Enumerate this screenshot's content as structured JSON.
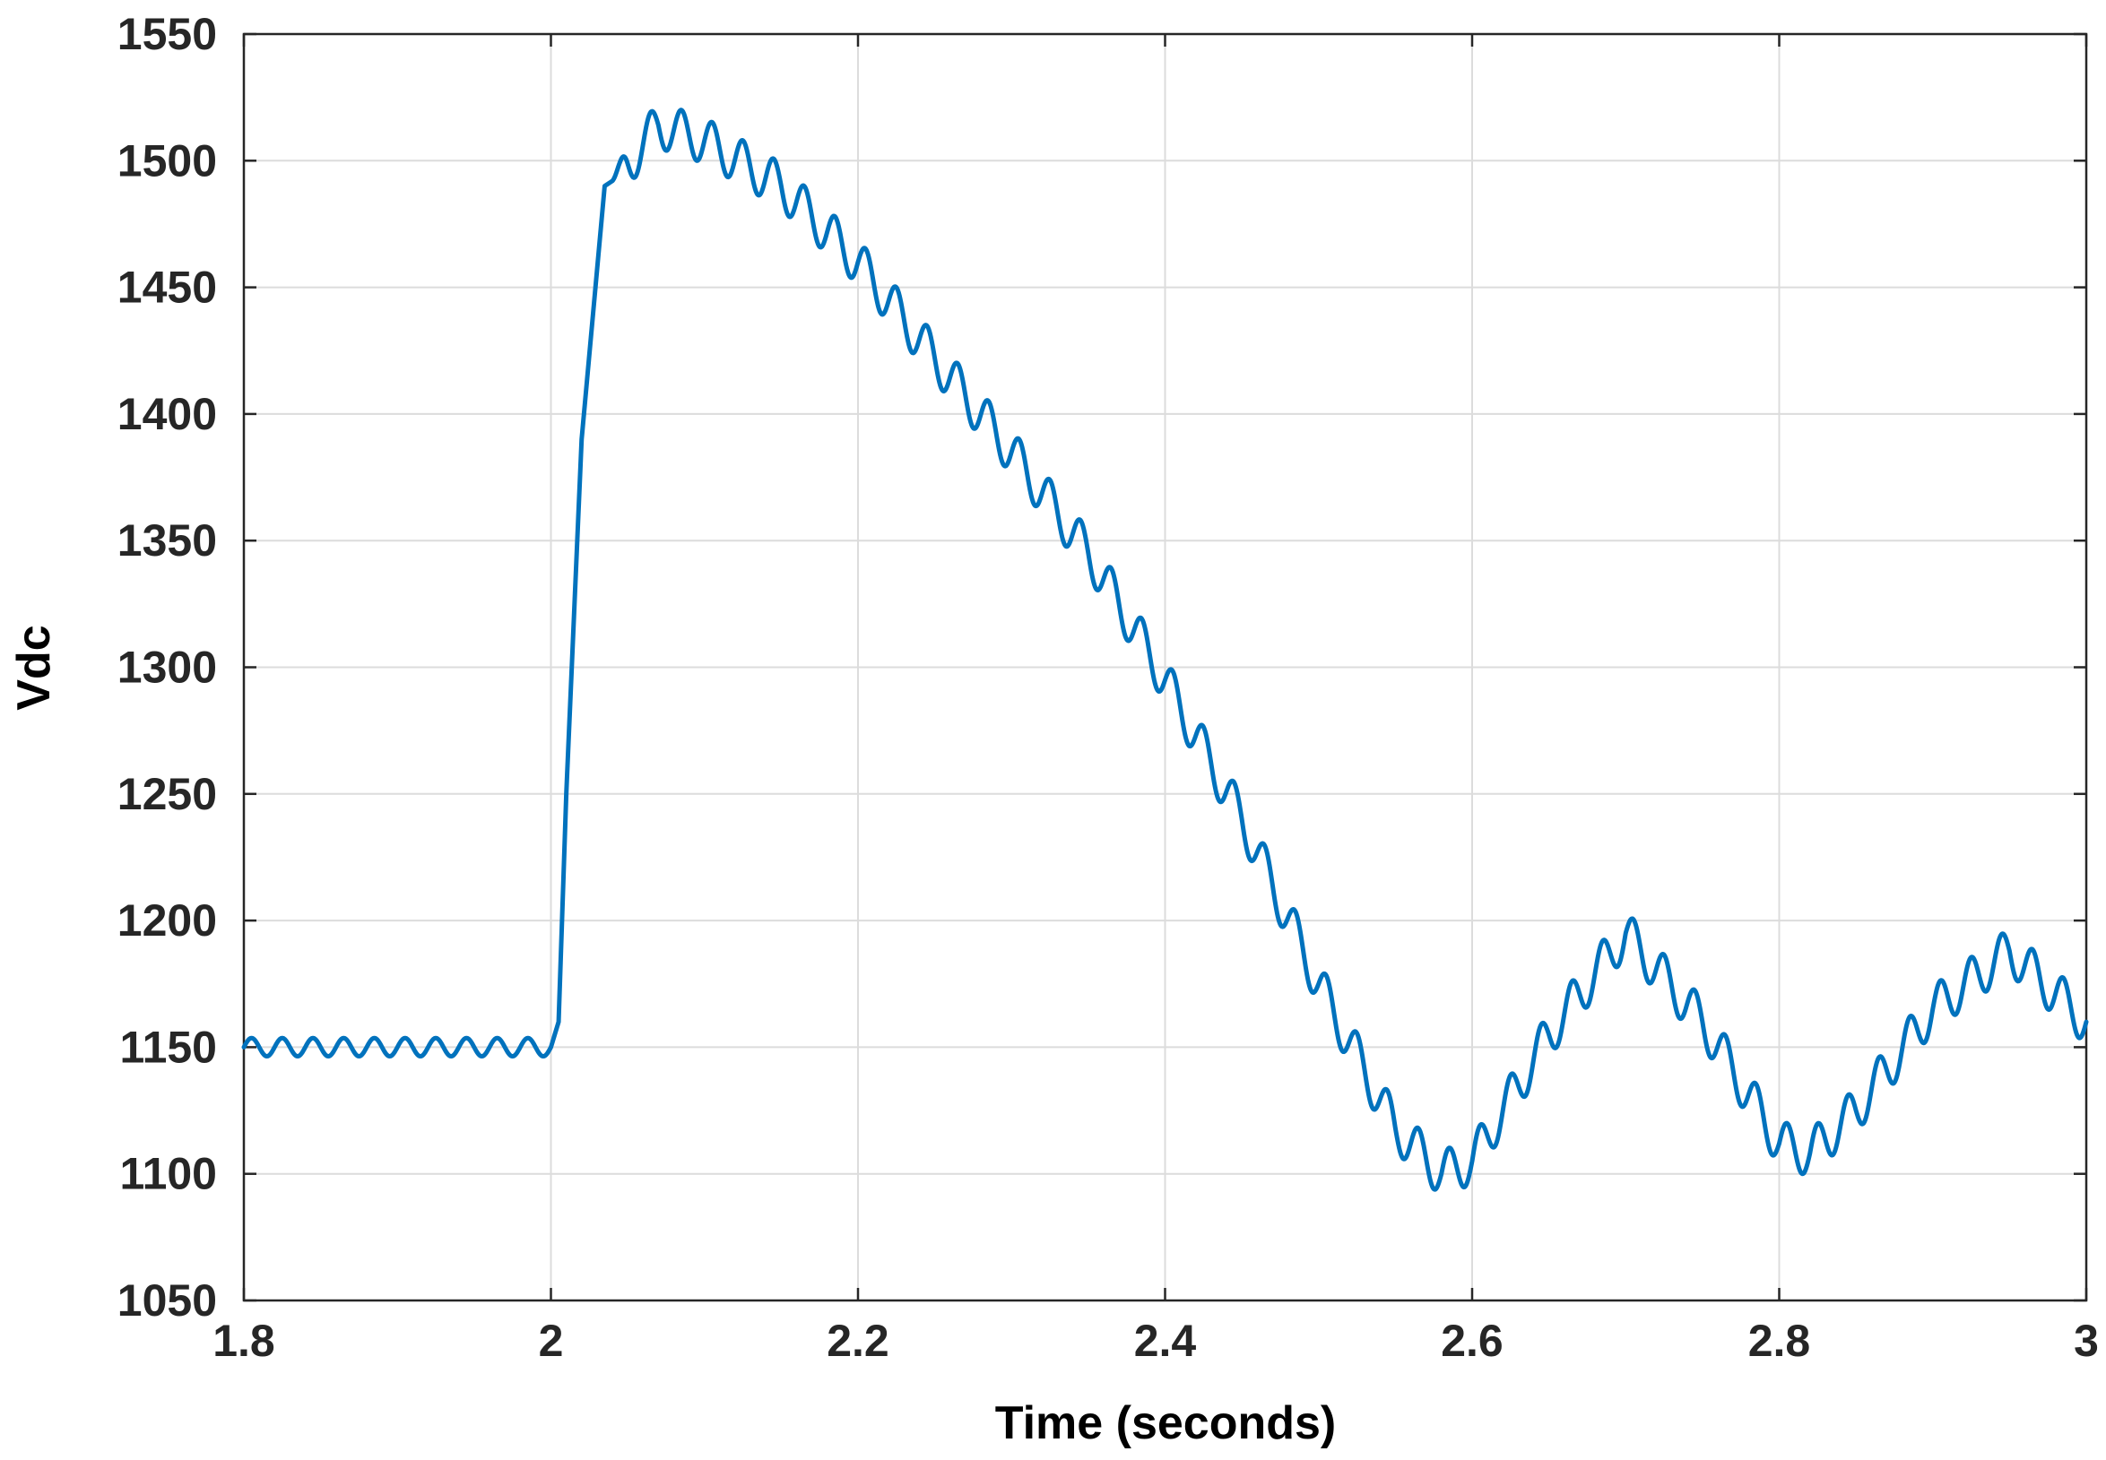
{
  "chart_data": {
    "type": "line",
    "xlabel": "Time (seconds)",
    "ylabel": "Vdc",
    "xlim": [
      1.8,
      3.0
    ],
    "ylim": [
      1050,
      1550
    ],
    "xticks": [
      "1.8",
      "2",
      "2.2",
      "2.4",
      "2.6",
      "2.8",
      "3"
    ],
    "yticks": [
      "1050",
      "1100",
      "1150",
      "1200",
      "1250",
      "1300",
      "1350",
      "1400",
      "1450",
      "1500",
      "1550"
    ],
    "grid": true,
    "series": [
      {
        "color": "#0072BD",
        "x": [
          1.8,
          1.85,
          1.9,
          1.95,
          2.0,
          2.005,
          2.01,
          2.02,
          2.035,
          2.04,
          2.045,
          2.07,
          2.1,
          2.15,
          2.2,
          2.25,
          2.3,
          2.35,
          2.4,
          2.45,
          2.5,
          2.55,
          2.58,
          2.6,
          2.65,
          2.7,
          2.75,
          2.8,
          2.82,
          2.85,
          2.9,
          2.95,
          3.0
        ],
        "y": [
          1150,
          1150,
          1150,
          1150,
          1150,
          1160,
          1250,
          1390,
          1490,
          1492,
          1495,
          1514,
          1508,
          1490,
          1460,
          1422,
          1385,
          1345,
          1295,
          1240,
          1175,
          1118,
          1100,
          1105,
          1155,
          1195,
          1160,
          1112,
          1108,
          1125,
          1165,
          1188,
          1160
        ],
        "ripple_amplitude": 9,
        "ripple_period": 0.02
      }
    ]
  }
}
